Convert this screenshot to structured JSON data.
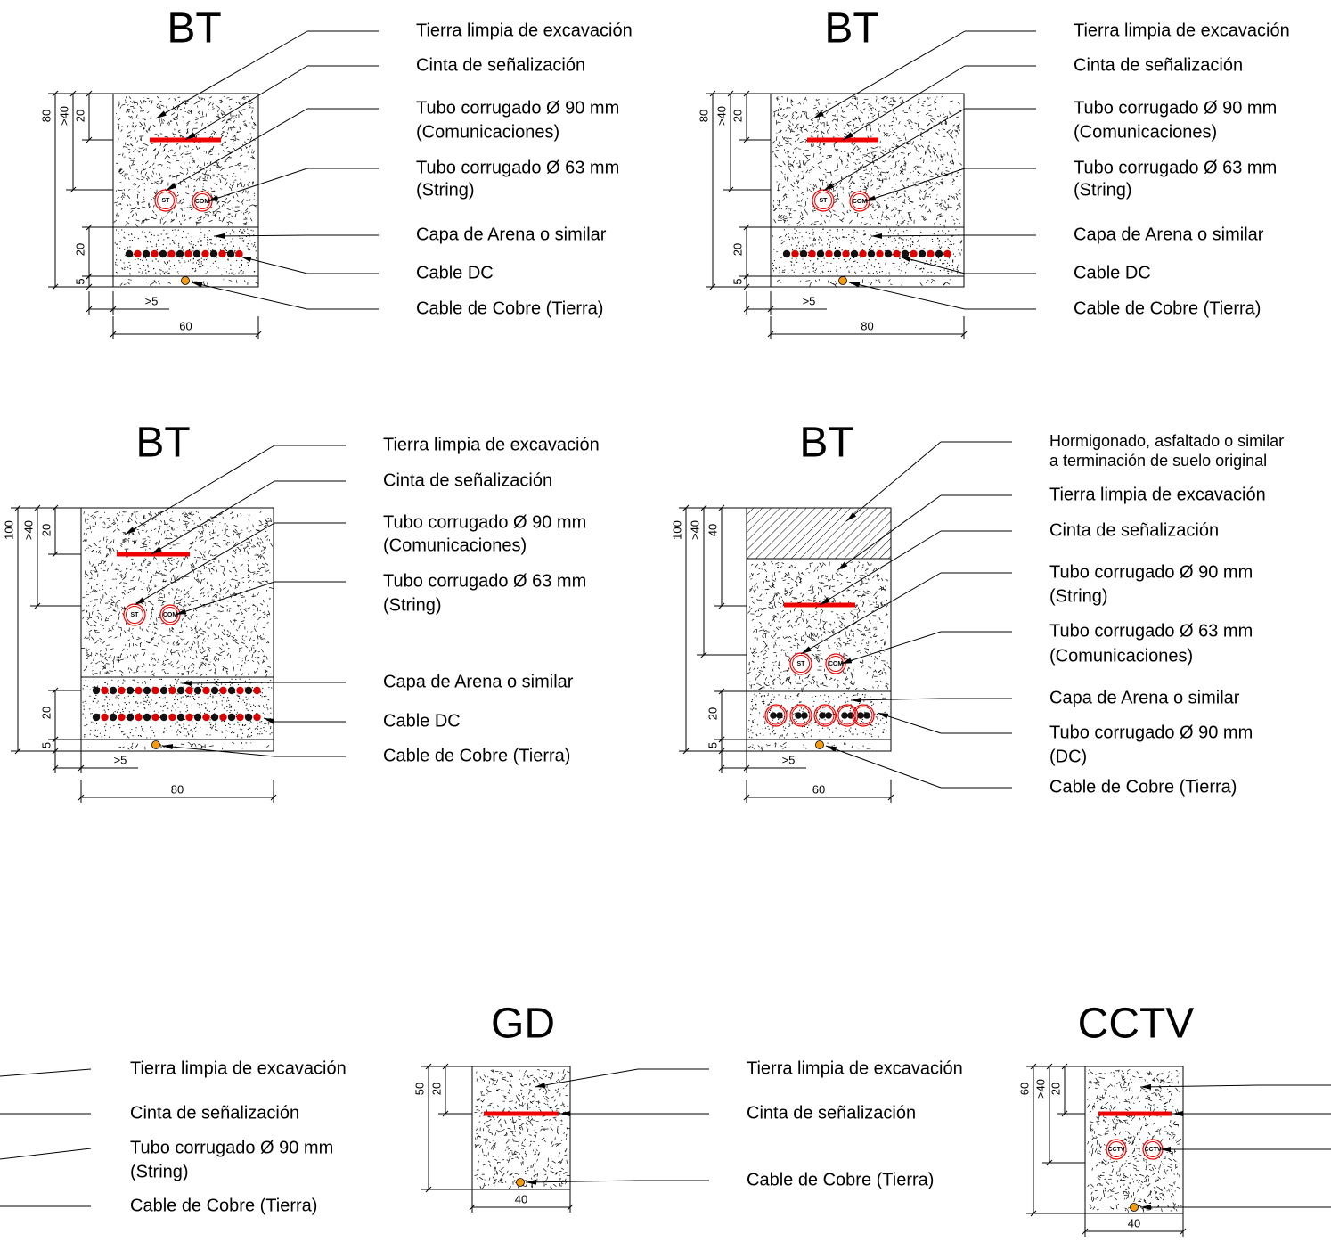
{
  "panels": [
    {
      "title": "BT",
      "labels": [
        [
          "Tierra limpia de excavación"
        ],
        [
          "Cinta de señalización"
        ],
        [
          "Tubo corrugado Ø 90 mm",
          "(Comunicaciones)"
        ],
        [
          "Tubo corrugado Ø 63 mm",
          "(String)"
        ],
        [
          "Capa de Arena o similar"
        ],
        [
          "Cable DC"
        ],
        [
          "Cable de Cobre (Tierra)"
        ]
      ],
      "markers": [
        "ST",
        "COM"
      ],
      "dims": [
        "80",
        ">40",
        "20",
        "20",
        "5",
        ">5",
        "60"
      ]
    },
    {
      "title": "BT",
      "labels": [
        [
          "Tierra limpia de excavación"
        ],
        [
          "Cinta de señalización"
        ],
        [
          "Tubo corrugado Ø 90 mm",
          "(Comunicaciones)"
        ],
        [
          "Tubo corrugado Ø 63 mm",
          "(String)"
        ],
        [
          "Capa de Arena o similar"
        ],
        [
          "Cable DC"
        ],
        [
          "Cable de Cobre (Tierra)"
        ]
      ],
      "markers": [
        "ST",
        "COM"
      ],
      "dims": [
        "80",
        ">40",
        "20",
        "20",
        "5",
        ">5",
        "80"
      ]
    },
    {
      "title": "BT",
      "labels": [
        [
          "Tierra limpia de excavación"
        ],
        [
          "Cinta de señalización"
        ],
        [
          "Tubo corrugado Ø 90 mm",
          "(Comunicaciones)"
        ],
        [
          "Tubo corrugado Ø 63 mm",
          "(String)"
        ],
        [
          "Capa de Arena o similar"
        ],
        [
          "Cable DC"
        ],
        [
          "Cable de Cobre (Tierra)"
        ]
      ],
      "markers": [
        "ST",
        "COM"
      ],
      "dims": [
        "100",
        ">40",
        "20",
        "20",
        "5",
        ">5",
        "80"
      ]
    },
    {
      "title": "BT",
      "labels": [
        [
          "Hormigonado, asfaltado o similar",
          "a terminación de suelo original"
        ],
        [
          "Tierra limpia de excavación"
        ],
        [
          "Cinta de señalización"
        ],
        [
          "Tubo corrugado Ø 90 mm",
          "(String)"
        ],
        [
          "Tubo corrugado Ø 63 mm",
          "(Comunicaciones)"
        ],
        [
          "Capa de Arena o similar"
        ],
        [
          "Tubo corrugado Ø 90 mm",
          "(DC)"
        ],
        [
          "Cable de Cobre (Tierra)"
        ]
      ],
      "markers": [
        "ST",
        "COM"
      ],
      "dims": [
        "100",
        ">40",
        "40",
        "20",
        "5",
        ">5",
        "60"
      ]
    },
    {
      "labels": [
        [
          "Tierra limpia de excavación"
        ],
        [
          "Cinta de señalización"
        ],
        [
          "Tubo corrugado Ø 90 mm",
          "(String)"
        ],
        [
          "Cable de Cobre (Tierra)"
        ]
      ]
    },
    {
      "title": "GD",
      "labels": [
        [
          "Tierra limpia de excavación"
        ],
        [
          "Cinta de señalización"
        ],
        [
          "Cable de Cobre (Tierra)"
        ]
      ],
      "dims": [
        "50",
        "20",
        "40"
      ]
    },
    {
      "title": "CCTV",
      "markers": [
        "CCTV",
        "CCTV"
      ],
      "dims": [
        "60",
        ">40",
        "20",
        "40"
      ]
    }
  ]
}
